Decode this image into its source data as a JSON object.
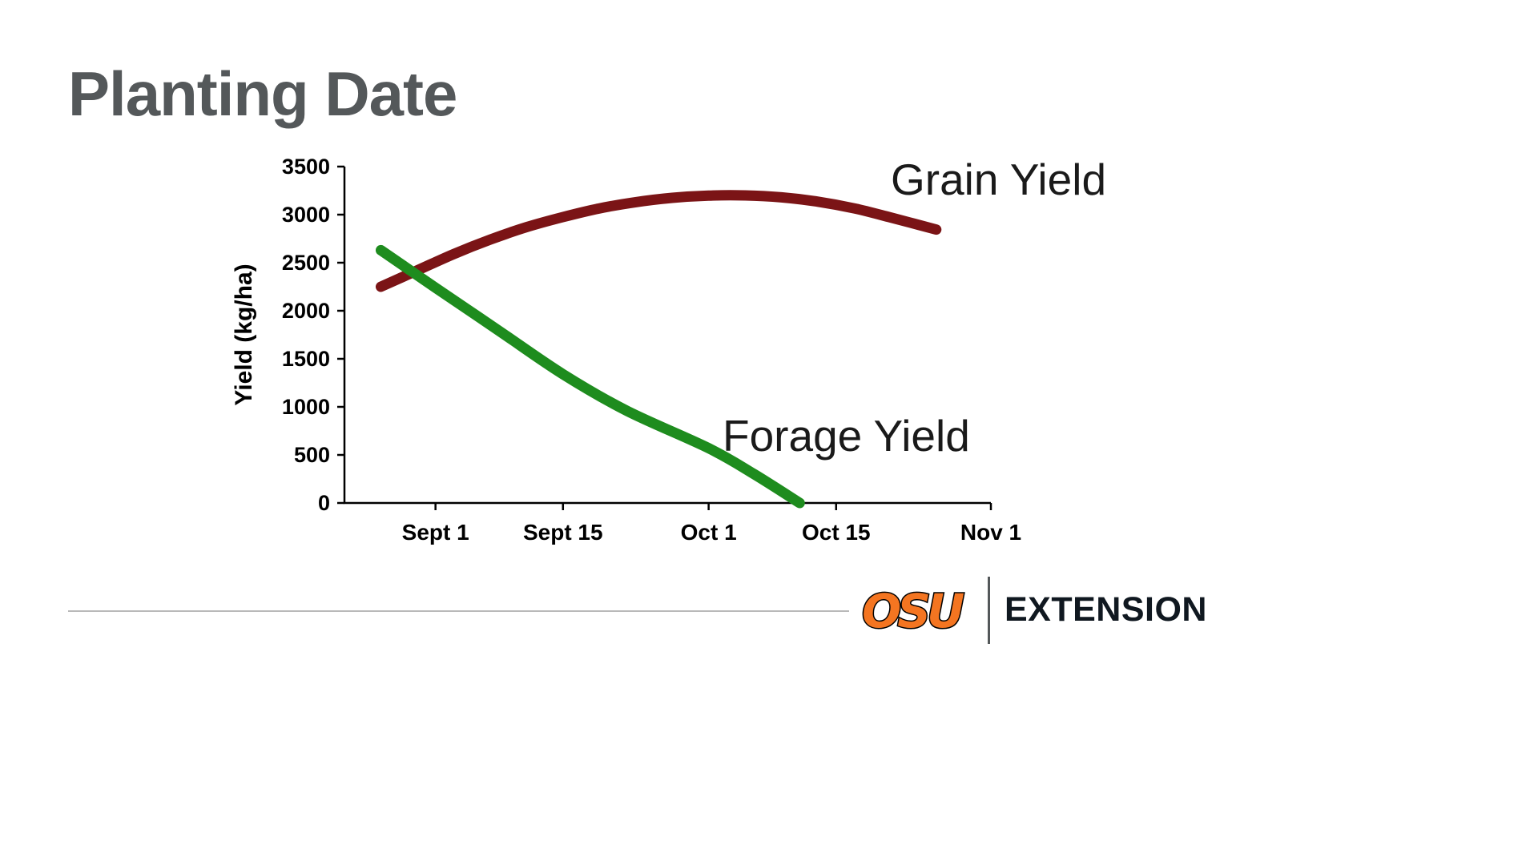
{
  "slide": {
    "title": "Planting Date"
  },
  "chart_data": {
    "type": "line",
    "title": "",
    "xlabel": "",
    "ylabel": "Yield (kg/ha)",
    "ylim": [
      0,
      3500
    ],
    "yticks": [
      0,
      500,
      1000,
      1500,
      2000,
      2500,
      3000,
      3500
    ],
    "x_axis_note": "planting date, measured in days relative to Sept 1",
    "xlim_days": [
      -10,
      61
    ],
    "xticks": [
      {
        "label": "Sept 1",
        "day": 0
      },
      {
        "label": "Sept 15",
        "day": 14
      },
      {
        "label": "Oct 1",
        "day": 30
      },
      {
        "label": "Oct 15",
        "day": 44
      },
      {
        "label": "Nov 1",
        "day": 61
      }
    ],
    "grid": false,
    "legend": "inline text annotations",
    "series": [
      {
        "name": "Grain Yield",
        "color": "#7b1416",
        "stroke_width": 13,
        "points": [
          [
            -6,
            2250
          ],
          [
            -2,
            2420
          ],
          [
            2,
            2590
          ],
          [
            6,
            2740
          ],
          [
            10,
            2870
          ],
          [
            14,
            2975
          ],
          [
            18,
            3065
          ],
          [
            22,
            3130
          ],
          [
            26,
            3175
          ],
          [
            30,
            3198
          ],
          [
            34,
            3200
          ],
          [
            38,
            3180
          ],
          [
            42,
            3135
          ],
          [
            46,
            3065
          ],
          [
            50,
            2970
          ],
          [
            55,
            2845
          ]
        ]
      },
      {
        "name": "Forage Yield",
        "color": "#1e8c1e",
        "stroke_width": 13,
        "points": [
          [
            -6,
            2630
          ],
          [
            0,
            2240
          ],
          [
            7,
            1790
          ],
          [
            14,
            1340
          ],
          [
            21,
            960
          ],
          [
            30,
            570
          ],
          [
            35,
            300
          ],
          [
            40,
            0
          ]
        ]
      }
    ],
    "annotations": [
      {
        "text": "Grain Yield"
      },
      {
        "text": "Forage Yield"
      }
    ]
  },
  "footer": {
    "logo_text": "OSU",
    "logo_color": "#f47521",
    "brand_text": "EXTENSION"
  }
}
